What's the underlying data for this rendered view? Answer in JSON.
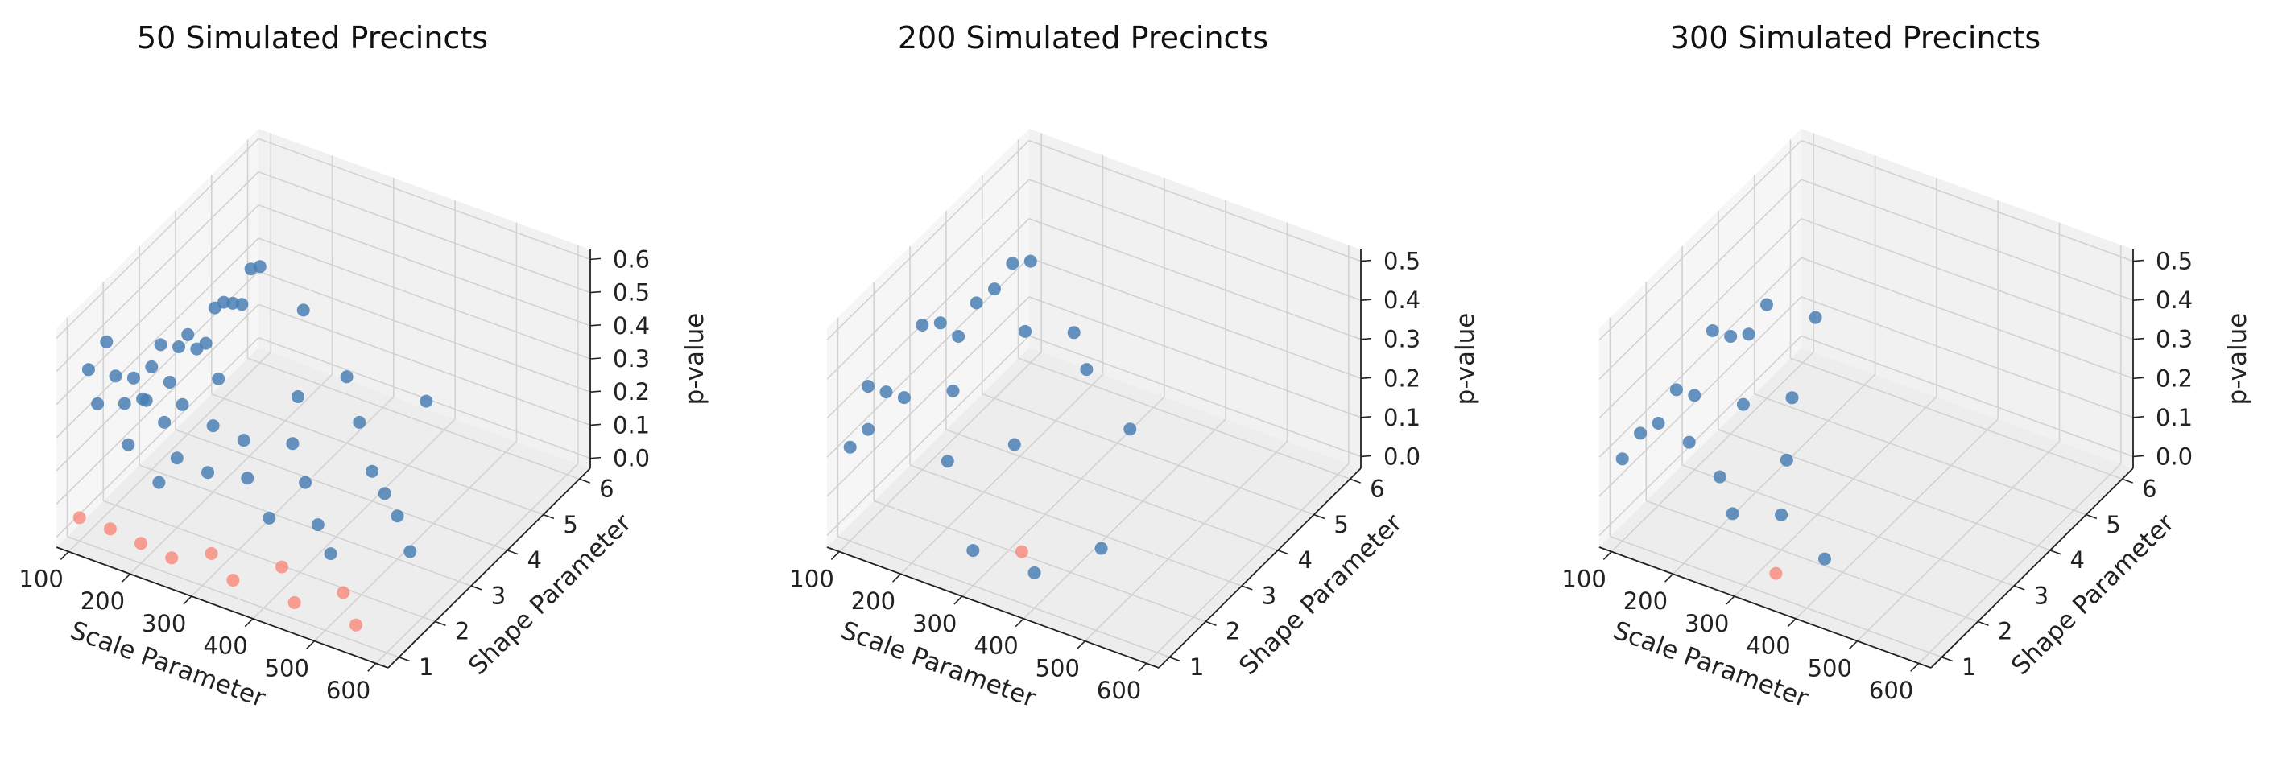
{
  "colors": {
    "significant": "#4a7fb4",
    "nonsignificant": "#fa8072",
    "pane_light": "#f6f6f6",
    "pane_dark": "#ededed",
    "grid": "#d2d2d2",
    "axis": "#222222"
  },
  "chart_data": [
    {
      "type": "scatter",
      "title": "50 Simulated Precincts",
      "xlabel": "Scale Parameter",
      "ylabel": "Shape Parameter",
      "zlabel": "p-value",
      "xlim": [
        80,
        620
      ],
      "ylim": [
        0.7,
        6.3
      ],
      "zlim": [
        -0.03,
        0.63
      ],
      "xticks": [
        "100",
        "200",
        "300",
        "400",
        "500",
        "600"
      ],
      "yticks": [
        "1",
        "2",
        "3",
        "4",
        "5",
        "6"
      ],
      "zticks": [
        "0.0",
        "0.1",
        "0.2",
        "0.3",
        "0.4",
        "0.5",
        "0.6"
      ],
      "grid": true,
      "significance_threshold": 0.05,
      "series": [
        {
          "x": [
            100,
            100,
            100,
            100,
            100,
            100,
            100,
            100,
            100,
            100,
            100,
            100,
            100,
            100,
            100,
            100,
            100,
            100,
            100,
            100,
            100,
            150,
            150,
            150,
            150,
            150,
            150,
            200,
            200,
            200,
            200,
            200,
            250,
            250,
            250,
            250,
            300,
            300,
            300,
            300,
            350,
            350,
            350,
            350,
            400,
            400,
            400,
            400,
            450,
            450,
            450,
            500,
            500,
            550,
            550
          ],
          "y": [
            1.0,
            1.25,
            1.5,
            1.75,
            2.0,
            2.25,
            2.5,
            2.75,
            3.0,
            3.25,
            3.5,
            3.75,
            4.0,
            4.25,
            4.5,
            4.75,
            5.0,
            5.25,
            5.5,
            5.75,
            6.0,
            1.0,
            1.5,
            2.0,
            2.5,
            3.0,
            4.0,
            1.0,
            1.5,
            2.0,
            3.0,
            5.5,
            1.0,
            2.0,
            3.0,
            4.5,
            1.25,
            2.25,
            3.5,
            5.0,
            1.0,
            2.0,
            3.0,
            4.5,
            1.5,
            2.5,
            4.0,
            5.5,
            1.0,
            2.0,
            3.5,
            1.5,
            3.0,
            1.0,
            2.5
          ],
          "z": [
            0.04,
            0.46,
            0.33,
            0.49,
            0.36,
            0.25,
            0.3,
            0.21,
            0.28,
            0.32,
            0.18,
            0.26,
            0.27,
            0.2,
            0.19,
            0.27,
            0.26,
            0.23,
            0.2,
            0.28,
            0.26,
            0.04,
            0.24,
            0.32,
            0.2,
            0.2,
            0.17,
            0.03,
            0.16,
            0.18,
            0.17,
            0.25,
            0.02,
            0.17,
            0.16,
            0.13,
            0.04,
            0.16,
            0.13,
            0.17,
            0.02,
            0.1,
            0.1,
            0.12,
            0.04,
            0.06,
            0.06,
            0.11,
            0.02,
            0.06,
            0.08,
            0.03,
            0.1,
            0.02,
            0.08
          ]
        }
      ]
    },
    {
      "type": "scatter",
      "title": "200 Simulated Precincts",
      "xlabel": "Scale Parameter",
      "ylabel": "Shape Parameter",
      "zlabel": "p-value",
      "xlim": [
        80,
        620
      ],
      "ylim": [
        0.7,
        6.3
      ],
      "zlim": [
        -0.03,
        0.53
      ],
      "xticks": [
        "100",
        "200",
        "300",
        "400",
        "500",
        "600"
      ],
      "yticks": [
        "1",
        "2",
        "3",
        "4",
        "5",
        "6"
      ],
      "zticks": [
        "0.0",
        "0.1",
        "0.2",
        "0.3",
        "0.4",
        "0.5"
      ],
      "grid": true,
      "significance_threshold": 0.05,
      "series": [
        {
          "x": [
            100,
            100,
            100,
            100,
            100,
            100,
            100,
            100,
            100,
            100,
            100,
            100,
            150,
            150,
            200,
            200,
            250,
            250,
            300,
            350,
            350,
            400,
            450
          ],
          "y": [
            1.0,
            1.5,
            2.0,
            2.5,
            3.0,
            3.5,
            4.0,
            4.5,
            5.0,
            5.5,
            6.0,
            1.5,
            3.0,
            5.0,
            2.0,
            5.5,
            3.0,
            5.0,
            1.0,
            1.5,
            4.5,
            1.0,
            2.0
          ],
          "z": [
            0.21,
            0.32,
            0.26,
            0.2,
            0.34,
            0.3,
            0.22,
            0.26,
            0.25,
            0.27,
            0.23,
            0.21,
            0.2,
            0.17,
            0.14,
            0.15,
            0.12,
            0.13,
            0.06,
            0.04,
            0.08,
            0.06,
            0.06
          ]
        }
      ]
    },
    {
      "type": "scatter",
      "title": "300 Simulated Precincts",
      "xlabel": "Scale Parameter",
      "ylabel": "Shape Parameter",
      "zlabel": "p-value",
      "xlim": [
        80,
        620
      ],
      "ylim": [
        0.7,
        6.3
      ],
      "zlim": [
        -0.03,
        0.53
      ],
      "xticks": [
        "100",
        "200",
        "300",
        "400",
        "500",
        "600"
      ],
      "yticks": [
        "1",
        "2",
        "3",
        "4",
        "5",
        "6"
      ],
      "zticks": [
        "0.0",
        "0.1",
        "0.2",
        "0.3",
        "0.4",
        "0.5"
      ],
      "grid": true,
      "significance_threshold": 0.05,
      "series": [
        {
          "x": [
            100,
            100,
            100,
            100,
            100,
            100,
            100,
            100,
            100,
            150,
            150,
            150,
            200,
            200,
            250,
            250,
            300,
            350,
            400
          ],
          "y": [
            1.0,
            1.5,
            2.0,
            2.5,
            3.0,
            3.5,
            4.0,
            4.5,
            5.0,
            2.0,
            3.5,
            5.5,
            2.0,
            4.0,
            1.5,
            3.0,
            2.0,
            1.0,
            1.5
          ],
          "z": [
            0.18,
            0.2,
            0.18,
            0.22,
            0.16,
            0.28,
            0.22,
            0.18,
            0.21,
            0.16,
            0.12,
            0.16,
            0.1,
            0.12,
            0.08,
            0.08,
            0.06,
            0.03,
            0.05
          ]
        }
      ]
    }
  ]
}
